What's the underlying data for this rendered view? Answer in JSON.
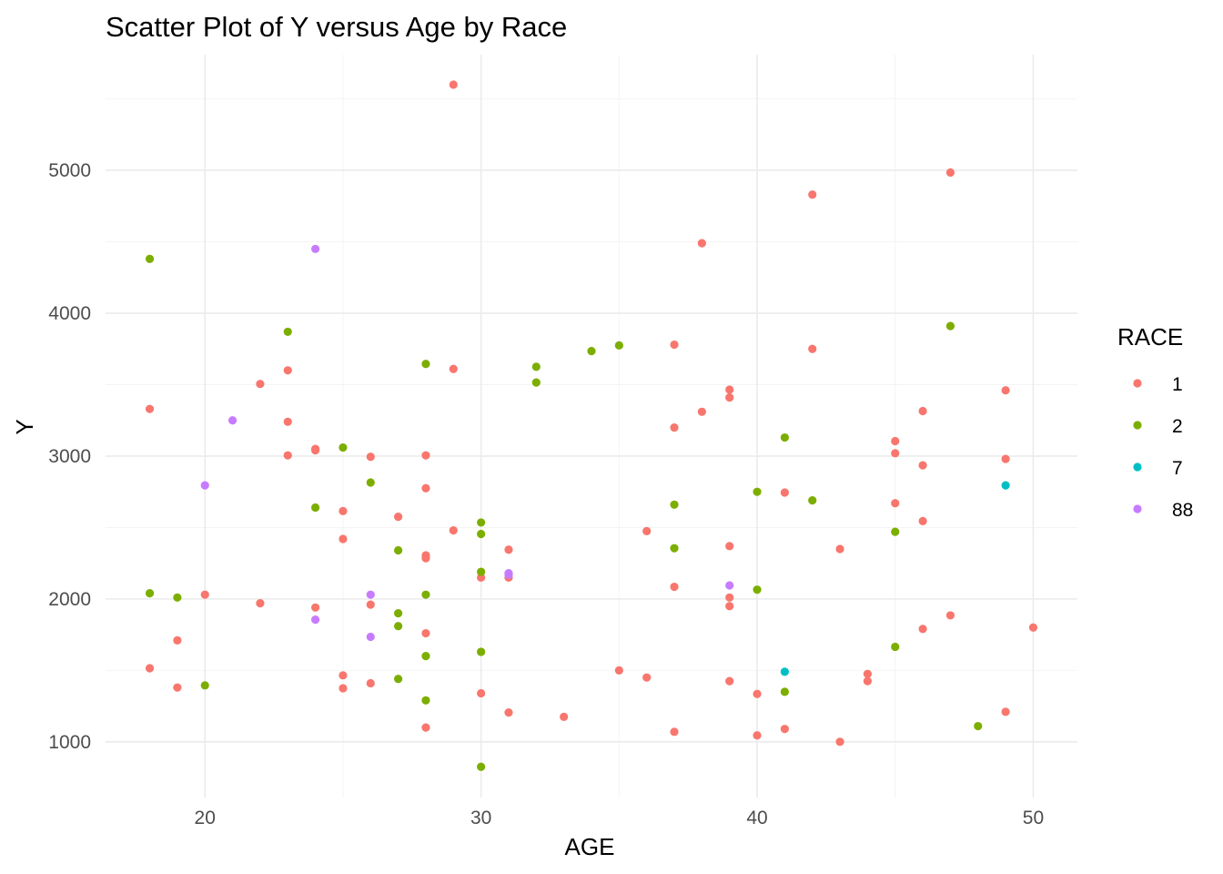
{
  "chart_data": {
    "type": "scatter",
    "title": "Scatter Plot of Y versus Age by Race",
    "xlabel": "AGE",
    "ylabel": "Y",
    "xlim": [
      16.4,
      51.6
    ],
    "ylim": [
      610,
      5810
    ],
    "x_ticks": [
      20,
      30,
      40,
      50
    ],
    "y_ticks": [
      1000,
      2000,
      3000,
      4000,
      5000
    ],
    "x_tick_labels": [
      "20",
      "30",
      "40",
      "50"
    ],
    "y_tick_labels": [
      "1000",
      "2000",
      "3000",
      "4000",
      "5000"
    ],
    "grid": true,
    "legend": {
      "title": "RACE",
      "position": "right"
    },
    "series": [
      {
        "name": "1",
        "color": "#F8766D",
        "points": [
          [
            18,
            3330
          ],
          [
            18,
            1515
          ],
          [
            19,
            1710
          ],
          [
            19,
            1380
          ],
          [
            20,
            2030
          ],
          [
            22,
            3505
          ],
          [
            22,
            1970
          ],
          [
            23,
            3600
          ],
          [
            23,
            3240
          ],
          [
            23,
            3005
          ],
          [
            24,
            3050
          ],
          [
            24,
            3040
          ],
          [
            24,
            1940
          ],
          [
            25,
            2615
          ],
          [
            25,
            2420
          ],
          [
            25,
            1465
          ],
          [
            25,
            1375
          ],
          [
            26,
            2995
          ],
          [
            26,
            1960
          ],
          [
            26,
            1410
          ],
          [
            27,
            2575
          ],
          [
            28,
            3005
          ],
          [
            28,
            2775
          ],
          [
            28,
            2305
          ],
          [
            28,
            2285
          ],
          [
            28,
            1760
          ],
          [
            28,
            1100
          ],
          [
            29,
            5600
          ],
          [
            29,
            3610
          ],
          [
            29,
            2480
          ],
          [
            30,
            2150
          ],
          [
            30,
            1340
          ],
          [
            31,
            2345
          ],
          [
            31,
            2150
          ],
          [
            31,
            1205
          ],
          [
            33,
            1175
          ],
          [
            35,
            1500
          ],
          [
            36,
            2475
          ],
          [
            36,
            1450
          ],
          [
            37,
            3780
          ],
          [
            37,
            3200
          ],
          [
            37,
            2085
          ],
          [
            37,
            1070
          ],
          [
            38,
            4490
          ],
          [
            38,
            3310
          ],
          [
            39,
            3465
          ],
          [
            39,
            3410
          ],
          [
            39,
            2370
          ],
          [
            39,
            2010
          ],
          [
            39,
            1950
          ],
          [
            39,
            1425
          ],
          [
            40,
            1335
          ],
          [
            40,
            1045
          ],
          [
            41,
            2745
          ],
          [
            41,
            1090
          ],
          [
            42,
            4830
          ],
          [
            42,
            3750
          ],
          [
            43,
            2350
          ],
          [
            43,
            1000
          ],
          [
            44,
            1475
          ],
          [
            44,
            1425
          ],
          [
            45,
            3105
          ],
          [
            45,
            3020
          ],
          [
            45,
            2670
          ],
          [
            46,
            3315
          ],
          [
            46,
            2935
          ],
          [
            46,
            2545
          ],
          [
            46,
            1790
          ],
          [
            47,
            4985
          ],
          [
            47,
            1885
          ],
          [
            49,
            3460
          ],
          [
            49,
            2980
          ],
          [
            49,
            1210
          ],
          [
            50,
            1800
          ]
        ]
      },
      {
        "name": "2",
        "color": "#7CAE00",
        "points": [
          [
            18,
            4380
          ],
          [
            18,
            2040
          ],
          [
            19,
            2010
          ],
          [
            20,
            1395
          ],
          [
            23,
            3870
          ],
          [
            24,
            2640
          ],
          [
            25,
            3060
          ],
          [
            26,
            2815
          ],
          [
            27,
            2340
          ],
          [
            27,
            1900
          ],
          [
            27,
            1810
          ],
          [
            27,
            1440
          ],
          [
            28,
            3645
          ],
          [
            28,
            2030
          ],
          [
            28,
            1600
          ],
          [
            28,
            1290
          ],
          [
            30,
            2535
          ],
          [
            30,
            2455
          ],
          [
            30,
            2190
          ],
          [
            30,
            1630
          ],
          [
            30,
            825
          ],
          [
            32,
            3625
          ],
          [
            32,
            3515
          ],
          [
            34,
            3735
          ],
          [
            35,
            3775
          ],
          [
            37,
            2660
          ],
          [
            37,
            2355
          ],
          [
            40,
            2750
          ],
          [
            40,
            2065
          ],
          [
            41,
            3130
          ],
          [
            41,
            1350
          ],
          [
            42,
            2690
          ],
          [
            45,
            2470
          ],
          [
            45,
            1665
          ],
          [
            47,
            3910
          ],
          [
            48,
            1110
          ]
        ]
      },
      {
        "name": "7",
        "color": "#00BFC4",
        "points": [
          [
            41,
            1490
          ],
          [
            49,
            2795
          ]
        ]
      },
      {
        "name": "88",
        "color": "#C77CFF",
        "points": [
          [
            20,
            2795
          ],
          [
            21,
            3250
          ],
          [
            24,
            4450
          ],
          [
            24,
            1855
          ],
          [
            26,
            2030
          ],
          [
            26,
            1735
          ],
          [
            31,
            2170
          ],
          [
            31,
            2180
          ],
          [
            39,
            2095
          ]
        ]
      }
    ]
  }
}
